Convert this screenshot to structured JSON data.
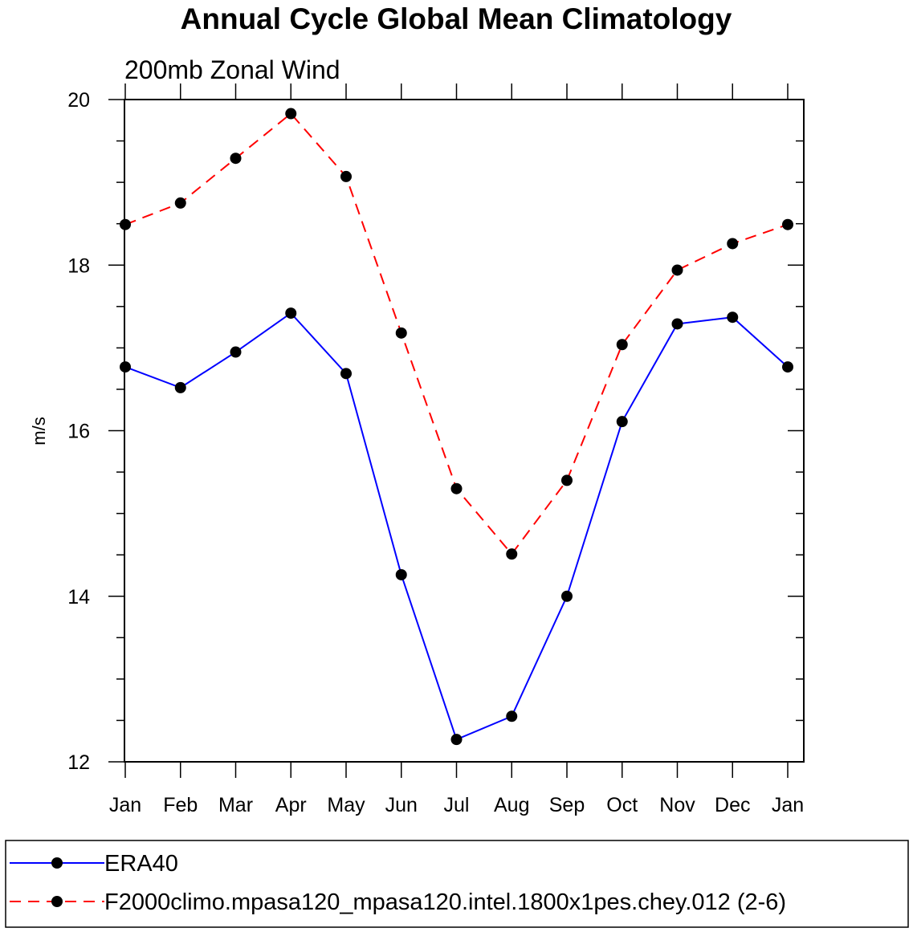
{
  "chart_data": {
    "type": "line",
    "title": "Annual Cycle Global Mean Climatology",
    "subtitle": "200mb Zonal Wind",
    "xlabel": "",
    "ylabel": "m/s",
    "categories": [
      "Jan",
      "Feb",
      "Mar",
      "Apr",
      "May",
      "Jun",
      "Jul",
      "Aug",
      "Sep",
      "Oct",
      "Nov",
      "Dec",
      "Jan"
    ],
    "ylim": [
      12,
      20
    ],
    "yticks": [
      12,
      14,
      16,
      18,
      20
    ],
    "ytick_labels": [
      "12",
      "14",
      "16",
      "18",
      "20"
    ],
    "series": [
      {
        "name": "ERA40",
        "color": "#0000ff",
        "dash": "solid",
        "marker": "filled-circle",
        "values": [
          16.77,
          16.52,
          16.95,
          17.42,
          16.69,
          14.26,
          12.27,
          12.55,
          14.0,
          16.11,
          17.29,
          17.37,
          16.77
        ]
      },
      {
        "name": "F2000climo.mpasa120_mpasa120.intel.1800x1pes.chey.012 (2-6)",
        "color": "#ff0000",
        "dash": "dashed",
        "marker": "filled-circle",
        "values": [
          18.49,
          18.75,
          19.29,
          19.83,
          19.07,
          17.18,
          15.3,
          14.51,
          15.4,
          17.04,
          17.94,
          18.26,
          18.49
        ]
      }
    ],
    "grid": false,
    "legend_position": "bottom"
  }
}
